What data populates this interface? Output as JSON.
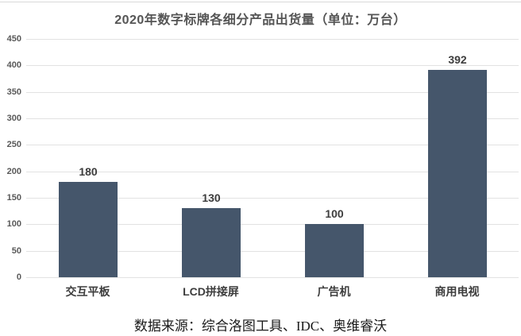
{
  "chart_data": {
    "type": "bar",
    "title": "2020年数字标牌各细分产品出货量（单位：万台）",
    "categories": [
      "交互平板",
      "LCD拼接屏",
      "广告机",
      "商用电视"
    ],
    "values": [
      180,
      130,
      100,
      392
    ],
    "data_labels": [
      "180",
      "130",
      "100",
      "392"
    ],
    "ylim": [
      0,
      450
    ],
    "ytick_step": 50,
    "yticks": [
      450,
      400,
      350,
      300,
      250,
      200,
      150,
      100,
      50,
      0
    ],
    "grid": "horizontal",
    "legend": "none",
    "bar_color": "#45566b",
    "gridline_color": "#e2e2e2",
    "source_text": "数据来源：综合洛图工具、IDC、奥维睿沃"
  }
}
